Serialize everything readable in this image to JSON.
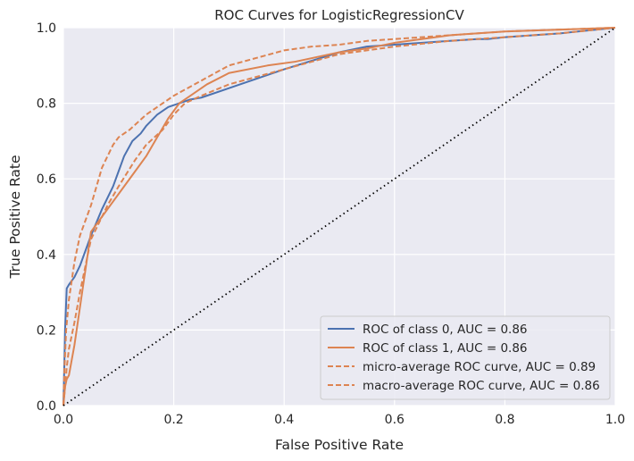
{
  "chart_data": {
    "type": "line",
    "title": "ROC Curves for LogisticRegressionCV",
    "xlabel": "False Positive Rate",
    "ylabel": "True Positive Rate",
    "xlim": [
      0,
      1
    ],
    "ylim": [
      0,
      1
    ],
    "x_ticks": [
      "0.0",
      "0.2",
      "0.4",
      "0.6",
      "0.8",
      "1.0"
    ],
    "y_ticks": [
      "0.0",
      "0.2",
      "0.4",
      "0.6",
      "0.8",
      "1.0"
    ],
    "grid": true,
    "legend_position": "lower-right",
    "background_color": "#eaeaf2",
    "grid_color": "#ffffff",
    "series": [
      {
        "name": "ROC of class 0, AUC = 0.86",
        "color": "#4c72b0",
        "style": "solid",
        "x": [
          0,
          0.003,
          0.006,
          0.01,
          0.02,
          0.03,
          0.05,
          0.07,
          0.09,
          0.1,
          0.11,
          0.125,
          0.14,
          0.15,
          0.17,
          0.19,
          0.21,
          0.23,
          0.25,
          0.3,
          0.4,
          0.5,
          0.55,
          0.6,
          0.7,
          0.75,
          0.77,
          0.8,
          0.9,
          1.0
        ],
        "y": [
          0,
          0.2,
          0.31,
          0.32,
          0.34,
          0.37,
          0.45,
          0.52,
          0.58,
          0.62,
          0.66,
          0.7,
          0.72,
          0.74,
          0.77,
          0.79,
          0.8,
          0.81,
          0.815,
          0.84,
          0.89,
          0.935,
          0.95,
          0.955,
          0.965,
          0.97,
          0.97,
          0.975,
          0.985,
          1.0
        ]
      },
      {
        "name": "ROC of class 1, AUC = 0.86",
        "color": "#dd8452",
        "style": "solid",
        "x": [
          0,
          0.003,
          0.006,
          0.01,
          0.015,
          0.02,
          0.03,
          0.04,
          0.05,
          0.07,
          0.1,
          0.13,
          0.15,
          0.17,
          0.19,
          0.21,
          0.23,
          0.26,
          0.3,
          0.37,
          0.42,
          0.5,
          0.55,
          0.6,
          0.7,
          0.8,
          0.9,
          1.0
        ],
        "y": [
          0,
          0.05,
          0.07,
          0.08,
          0.12,
          0.16,
          0.26,
          0.36,
          0.46,
          0.5,
          0.56,
          0.62,
          0.66,
          0.71,
          0.76,
          0.8,
          0.82,
          0.85,
          0.88,
          0.9,
          0.91,
          0.935,
          0.945,
          0.96,
          0.98,
          0.99,
          0.995,
          1.0
        ]
      },
      {
        "name": "micro-average ROC curve, AUC = 0.89",
        "color": "#dd8452",
        "style": "dashed",
        "x": [
          0,
          0.002,
          0.005,
          0.01,
          0.015,
          0.02,
          0.03,
          0.04,
          0.05,
          0.06,
          0.07,
          0.08,
          0.09,
          0.1,
          0.12,
          0.15,
          0.18,
          0.2,
          0.25,
          0.3,
          0.35,
          0.4,
          0.45,
          0.5,
          0.55,
          0.6,
          0.7,
          0.8,
          0.9,
          1.0
        ],
        "y": [
          0,
          0.1,
          0.2,
          0.28,
          0.33,
          0.38,
          0.45,
          0.49,
          0.53,
          0.58,
          0.63,
          0.66,
          0.69,
          0.71,
          0.73,
          0.77,
          0.8,
          0.82,
          0.86,
          0.9,
          0.92,
          0.94,
          0.95,
          0.955,
          0.965,
          0.97,
          0.98,
          0.99,
          0.995,
          1.0
        ]
      },
      {
        "name": "macro-average ROC curve, AUC = 0.86",
        "color": "#dd8452",
        "style": "dashed",
        "x": [
          0,
          0.003,
          0.006,
          0.01,
          0.02,
          0.03,
          0.05,
          0.08,
          0.1,
          0.13,
          0.15,
          0.18,
          0.2,
          0.22,
          0.25,
          0.3,
          0.35,
          0.4,
          0.45,
          0.5,
          0.6,
          0.7,
          0.8,
          0.9,
          1.0
        ],
        "y": [
          0,
          0.05,
          0.1,
          0.15,
          0.22,
          0.3,
          0.44,
          0.53,
          0.58,
          0.65,
          0.69,
          0.73,
          0.77,
          0.8,
          0.82,
          0.85,
          0.87,
          0.89,
          0.91,
          0.93,
          0.95,
          0.965,
          0.975,
          0.985,
          1.0
        ]
      },
      {
        "name": "",
        "color": "#000000",
        "style": "dotted",
        "x": [
          0,
          1
        ],
        "y": [
          0,
          1
        ]
      }
    ]
  }
}
